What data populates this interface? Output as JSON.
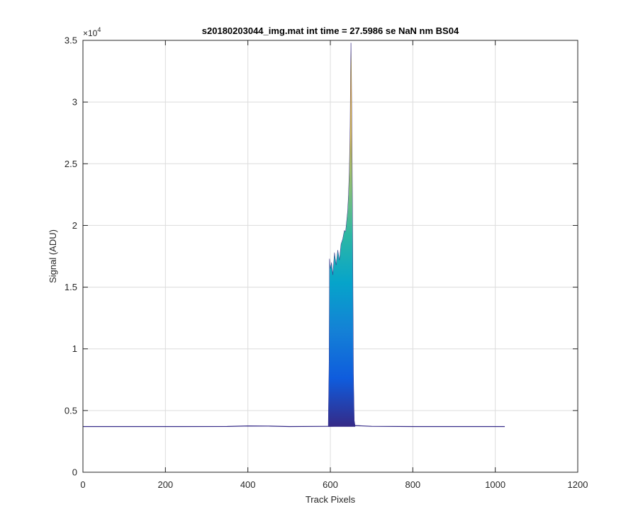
{
  "chart_data": {
    "type": "area",
    "title": "s20180203044_img.mat int time = 27.5986 se  NaN nm BS04",
    "xlabel": "Track Pixels",
    "ylabel": "Signal (ADU)",
    "xlim": [
      0,
      1200
    ],
    "ylim": [
      0,
      35000
    ],
    "xticks": [
      0,
      200,
      400,
      600,
      800,
      1000,
      1200
    ],
    "yticks": [
      0,
      5000,
      10000,
      15000,
      20000,
      25000,
      30000,
      35000
    ],
    "xtick_labels": [
      "0",
      "200",
      "400",
      "600",
      "800",
      "1000",
      "1200"
    ],
    "ytick_labels": [
      "0",
      "0.5",
      "1",
      "1.5",
      "2",
      "2.5",
      "3",
      "3.5"
    ],
    "y_exponent_label": "×10",
    "y_exponent_power": "4",
    "grid": true,
    "colormap": [
      "#352a87",
      "#0f5cdd",
      "#1481d6",
      "#06a4ca",
      "#2eb7a4",
      "#87bf77",
      "#d1bb59",
      "#fec832",
      "#f9fb0e"
    ],
    "baseline": {
      "x": [
        0,
        200,
        350,
        400,
        450,
        500,
        595,
        660,
        700,
        800,
        900,
        1023
      ],
      "y": [
        3700,
        3700,
        3710,
        3750,
        3740,
        3700,
        3720,
        3780,
        3720,
        3700,
        3700,
        3700
      ]
    },
    "peak": {
      "x": [
        595,
        597,
        598,
        600,
        603,
        606,
        610,
        614,
        618,
        622,
        626,
        630,
        634,
        637,
        640,
        642,
        644,
        646,
        648,
        649,
        650,
        651,
        652,
        653,
        654,
        655,
        656,
        658,
        660
      ],
      "y": [
        3800,
        9000,
        17300,
        16500,
        17000,
        16000,
        17800,
        16800,
        18000,
        17200,
        18500,
        18900,
        19600,
        19500,
        20500,
        21200,
        22500,
        24500,
        28000,
        32500,
        34800,
        33000,
        29000,
        25000,
        20000,
        14000,
        8000,
        4200,
        3780
      ]
    }
  }
}
